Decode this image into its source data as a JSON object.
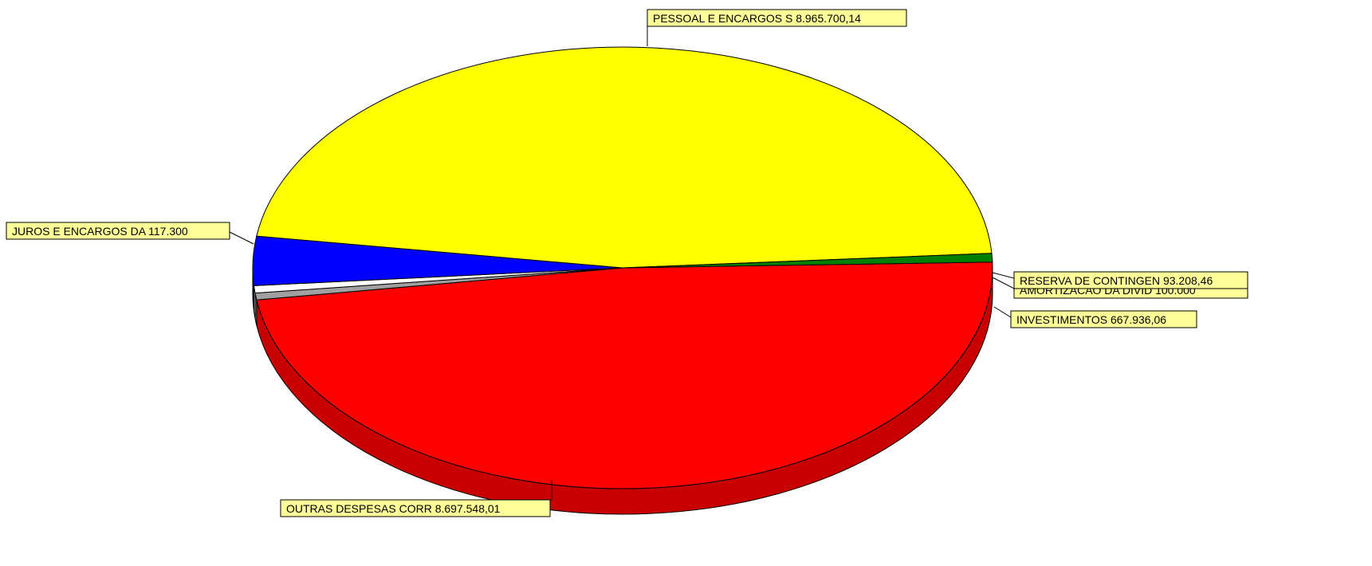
{
  "chart_data": {
    "type": "pie",
    "title": "",
    "slices": [
      {
        "label": "PESSOAL E ENCARGOS S 8.965.700,14",
        "value": 8965700.14,
        "color": "#ff0000",
        "side_color": "#c80000"
      },
      {
        "label": "RESERVA DE CONTINGEN 93.208,46",
        "value": 93208.46,
        "color": "#a0a0a0",
        "side_color": "#808080"
      },
      {
        "label": "AMORTIZACAO DA DIVID 100.000",
        "value": 100000,
        "color": "#ffffff",
        "side_color": "#d8d8d8"
      },
      {
        "label": "INVESTIMENTOS 667.936,06",
        "value": 667936.06,
        "color": "#0000ff",
        "side_color": "#0000b4"
      },
      {
        "label": "OUTRAS DESPESAS CORR 8.697.548,01",
        "value": 8697548.01,
        "color": "#ffff00",
        "side_color": "#dcdc00"
      },
      {
        "label": "JUROS E ENCARGOS DA 117.300",
        "value": 117300,
        "color": "#008000",
        "side_color": "#006000"
      }
    ],
    "label_box_color": "#ffff99",
    "legend": "none"
  }
}
